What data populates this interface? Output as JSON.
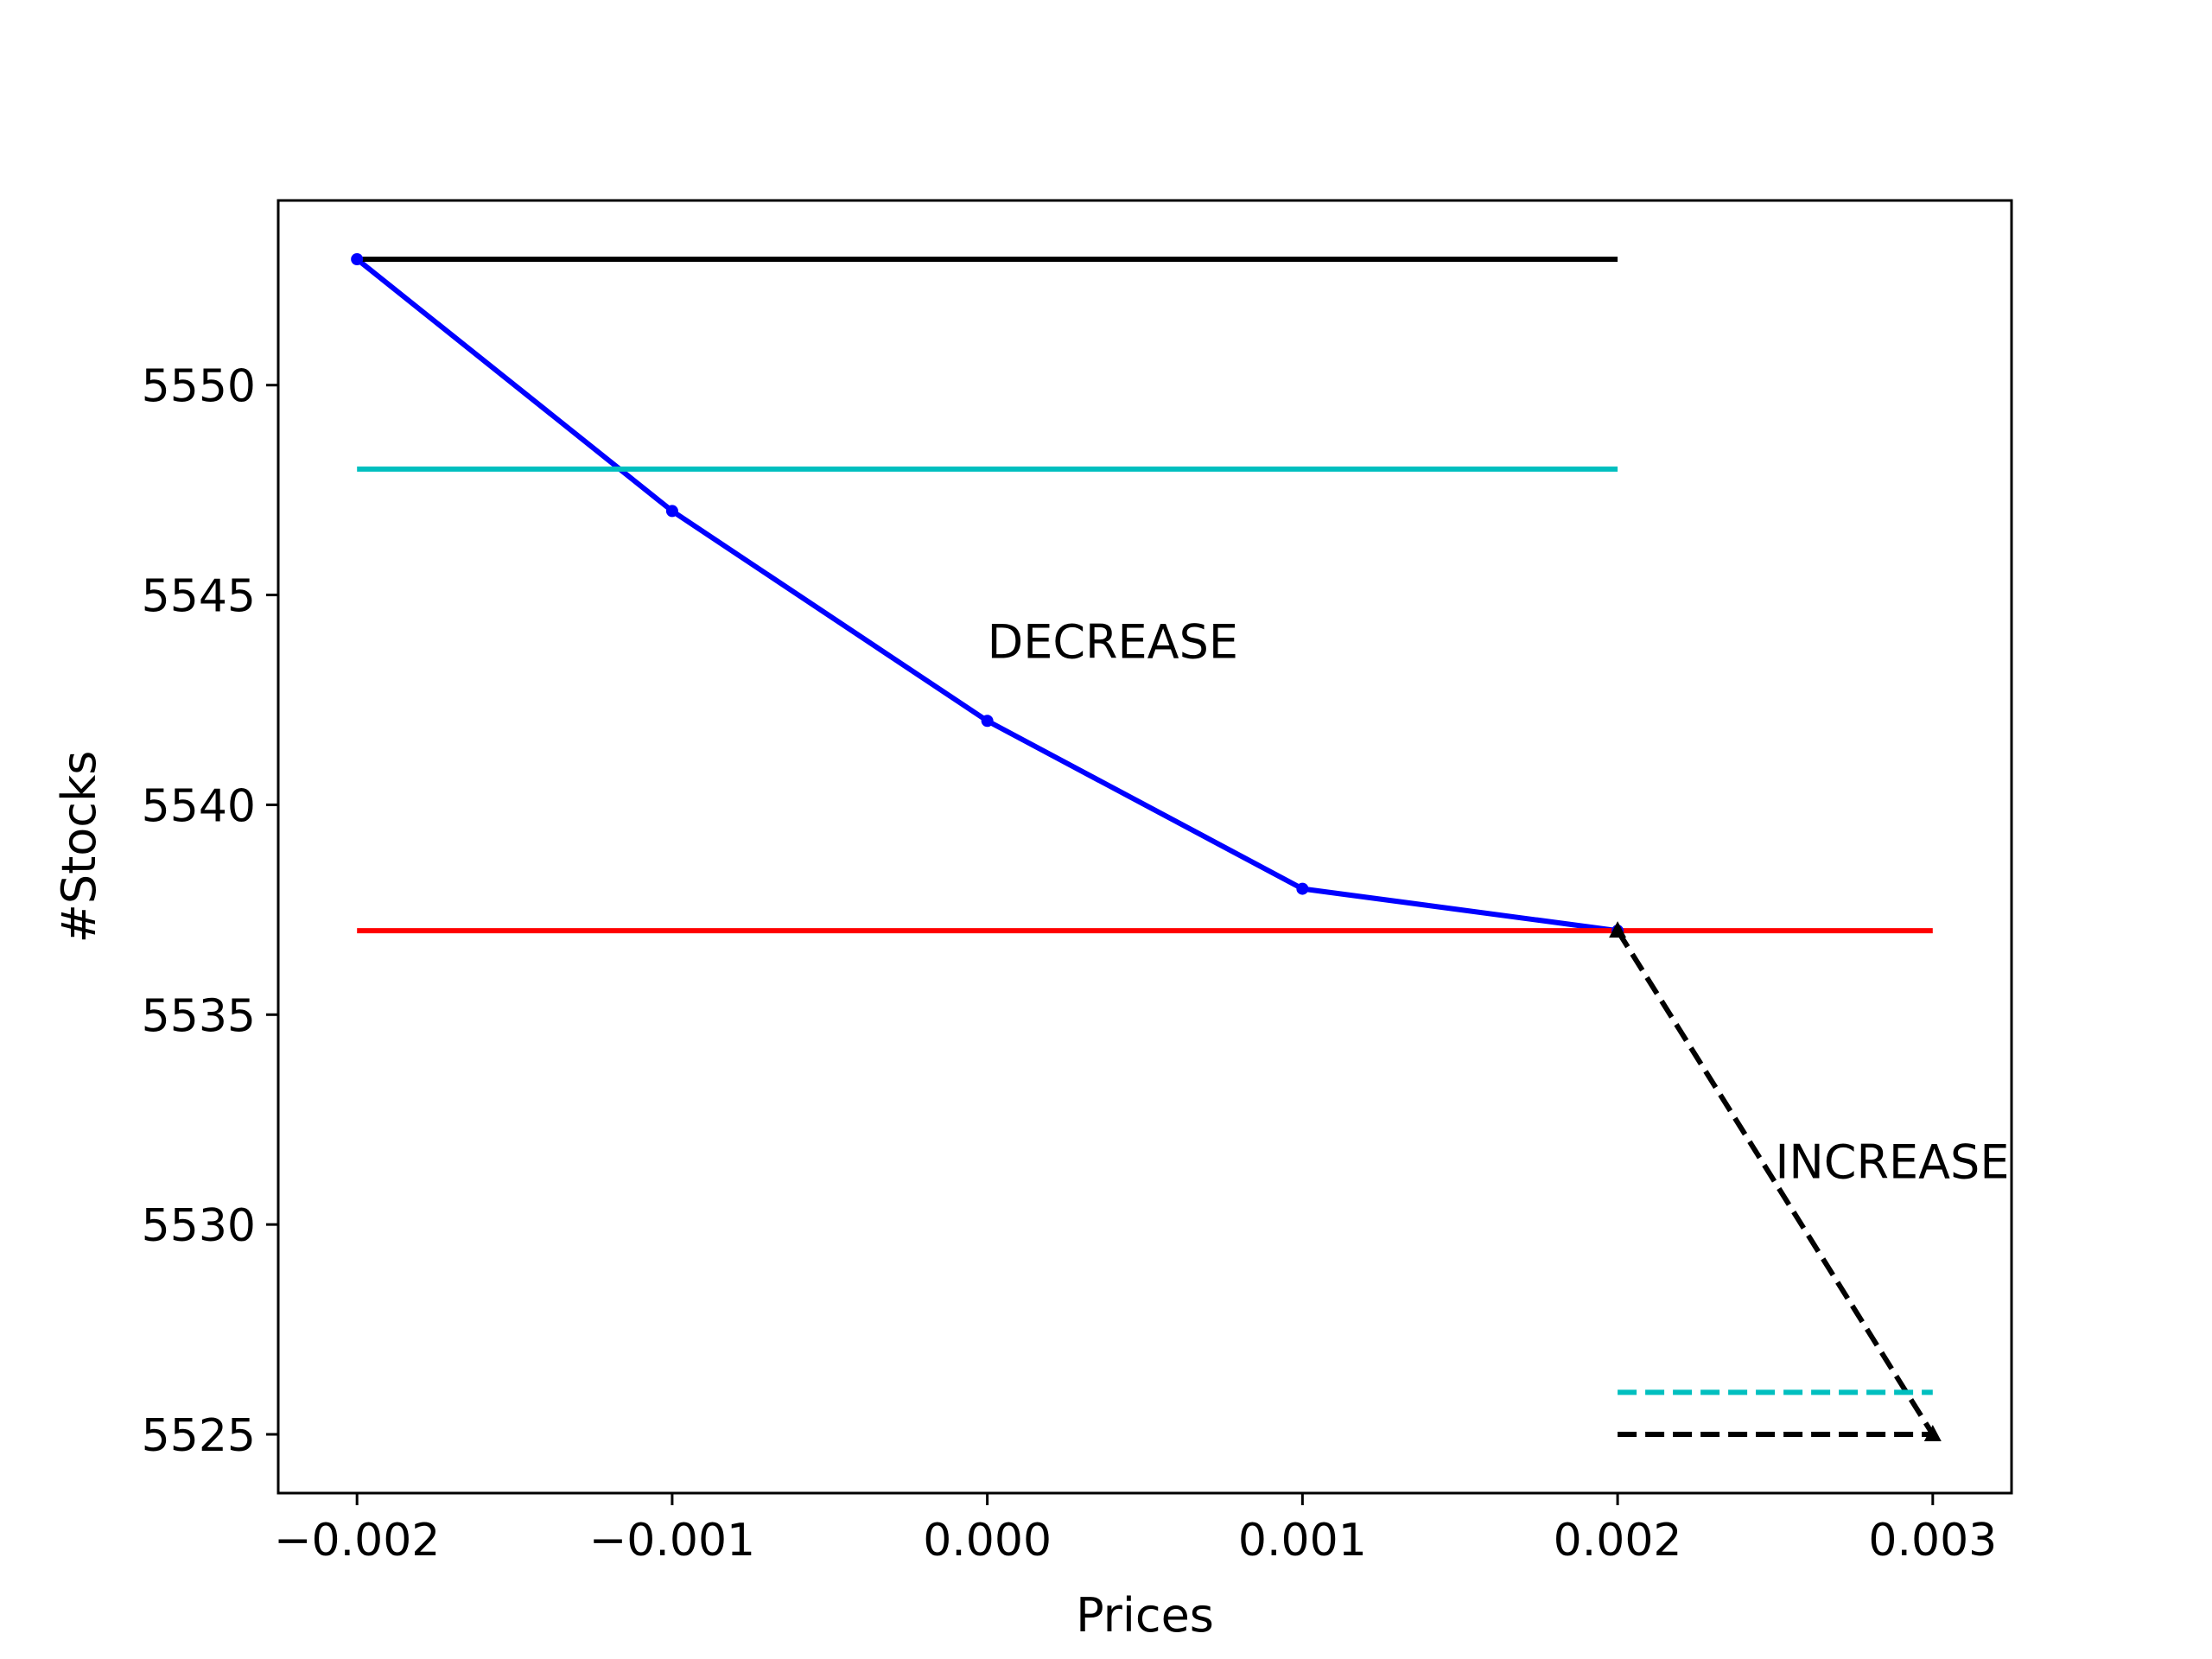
{
  "chart_data": {
    "type": "line",
    "xlabel": "Prices",
    "ylabel": "#Stocks",
    "xlim": [
      -0.00225,
      0.00325
    ],
    "ylim": [
      5523.6,
      5554.4
    ],
    "xticks": [
      -0.002,
      -0.001,
      0.0,
      0.001,
      0.002,
      0.003
    ],
    "xtick_labels": [
      "−0.002",
      "−0.001",
      "0.000",
      "0.001",
      "0.002",
      "0.003"
    ],
    "yticks": [
      5525,
      5530,
      5535,
      5540,
      5545,
      5550
    ],
    "ytick_labels": [
      "5525",
      "5530",
      "5535",
      "5540",
      "5545",
      "5550"
    ],
    "grid": false,
    "series": [
      {
        "color": "#0000ff",
        "linestyle": "solid",
        "marker": "dot",
        "x": [
          -0.002,
          -0.001,
          0.0,
          0.001,
          0.002
        ],
        "y": [
          5553,
          5547,
          5542,
          5538,
          5537
        ]
      },
      {
        "color": "#000000",
        "linestyle": "dashed",
        "marker": "triangle",
        "x": [
          0.002,
          0.003
        ],
        "y": [
          5537,
          5525
        ]
      },
      {
        "color": "#000000",
        "linestyle": "solid",
        "x": [
          -0.002,
          0.002
        ],
        "y": [
          5553,
          5553
        ]
      },
      {
        "color": "#00bfbf",
        "linestyle": "solid",
        "x": [
          -0.002,
          0.002
        ],
        "y": [
          5548,
          5548
        ]
      },
      {
        "color": "#ff0000",
        "linestyle": "solid",
        "x": [
          -0.002,
          0.003
        ],
        "y": [
          5537,
          5537
        ]
      },
      {
        "color": "#00bfbf",
        "linestyle": "dashed",
        "x": [
          0.002,
          0.003
        ],
        "y": [
          5526,
          5526
        ]
      },
      {
        "color": "#000000",
        "linestyle": "dashed",
        "x": [
          0.002,
          0.003
        ],
        "y": [
          5525,
          5525
        ]
      }
    ],
    "annotations": [
      {
        "text": "DECREASE",
        "x": 0.0,
        "y": 5543.5
      },
      {
        "text": "INCREASE",
        "x": 0.0025,
        "y": 5531.1
      }
    ]
  }
}
